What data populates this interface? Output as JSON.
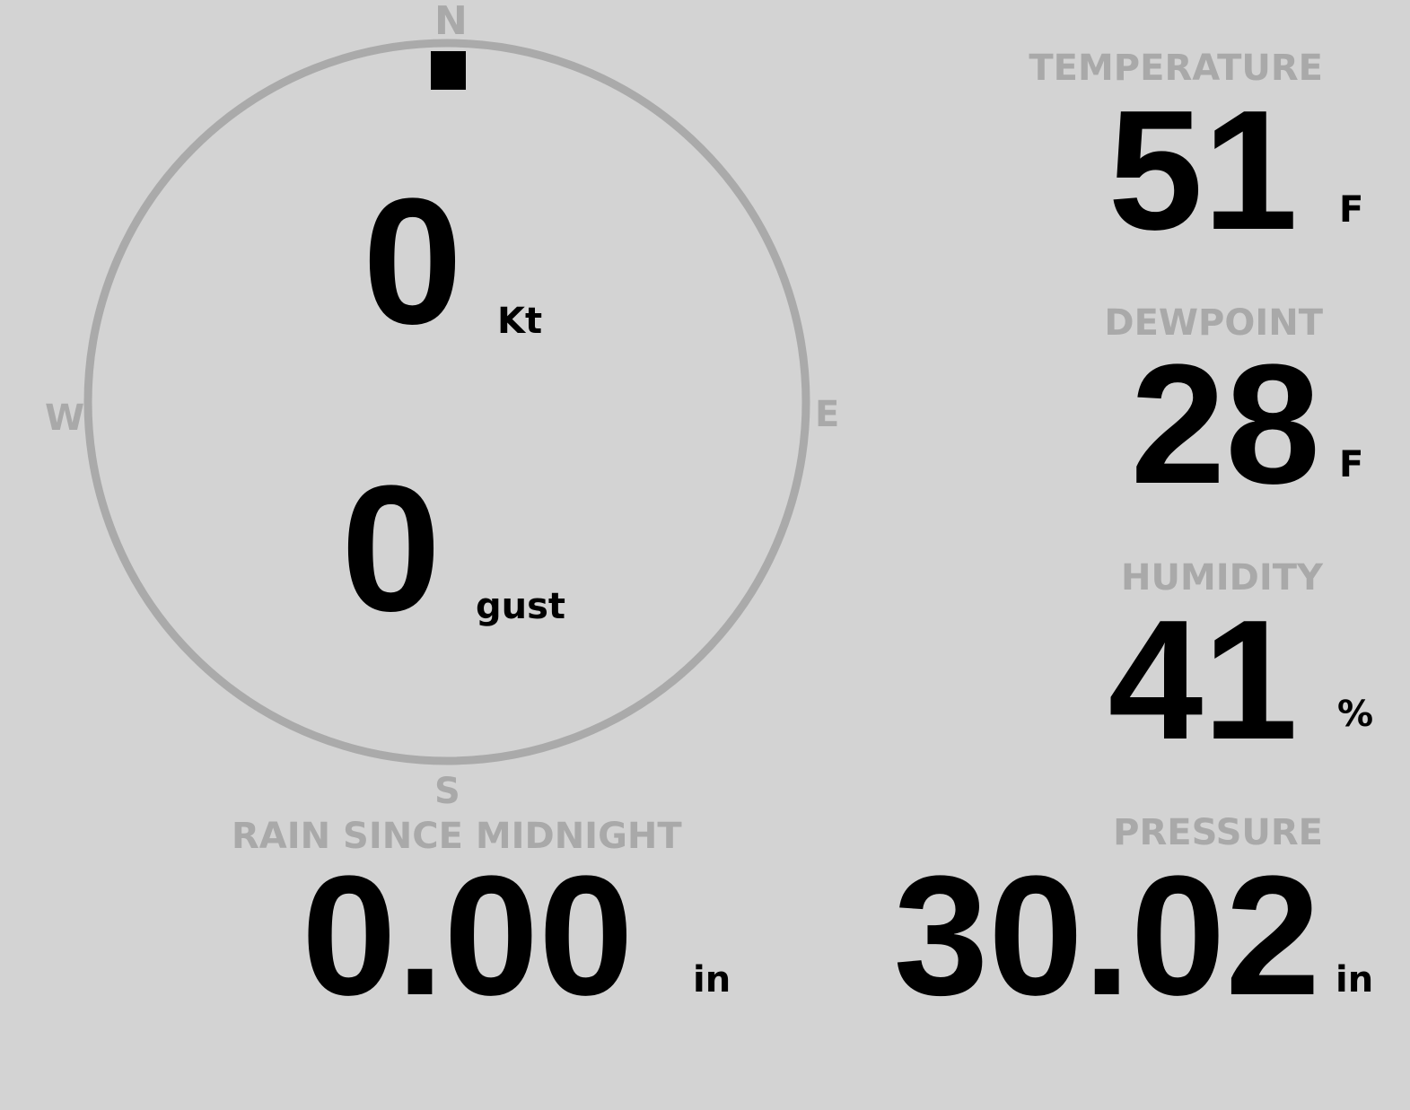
{
  "compass": {
    "n": "N",
    "e": "E",
    "s": "S",
    "w": "W",
    "direction_deg": 0,
    "ring_color": "#aaaaaa"
  },
  "wind": {
    "speed": "0",
    "speed_unit": "Kt",
    "gust": "0",
    "gust_unit": "gust"
  },
  "temperature": {
    "label": "TEMPERATURE",
    "value": "51",
    "unit": "F"
  },
  "dewpoint": {
    "label": "DEWPOINT",
    "value": "28",
    "unit": "F"
  },
  "humidity": {
    "label": "HUMIDITY",
    "value": "41",
    "unit": "%"
  },
  "rain": {
    "label": "RAIN SINCE MIDNIGHT",
    "value": "0.00",
    "unit": "in"
  },
  "pressure": {
    "label": "PRESSURE",
    "value": "30.02",
    "unit": "in"
  }
}
